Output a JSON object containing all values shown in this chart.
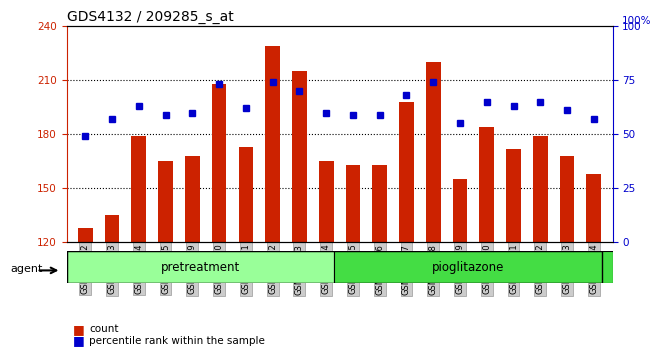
{
  "title": "GDS4132 / 209285_s_at",
  "samples": [
    "GSM201542",
    "GSM201543",
    "GSM201544",
    "GSM201545",
    "GSM201829",
    "GSM201830",
    "GSM201831",
    "GSM201832",
    "GSM201833",
    "GSM201834",
    "GSM201835",
    "GSM201836",
    "GSM201837",
    "GSM201838",
    "GSM201839",
    "GSM201840",
    "GSM201841",
    "GSM201842",
    "GSM201843",
    "GSM201844"
  ],
  "counts": [
    128,
    135,
    179,
    165,
    168,
    208,
    173,
    229,
    215,
    165,
    163,
    163,
    198,
    220,
    155,
    184,
    172,
    179,
    168,
    158
  ],
  "percentiles": [
    49,
    57,
    63,
    59,
    60,
    73,
    62,
    74,
    70,
    60,
    59,
    59,
    68,
    74,
    55,
    65,
    63,
    65,
    61,
    57
  ],
  "pretreatment_count": 10,
  "pioglitazone_count": 10,
  "ylim_left": [
    120,
    240
  ],
  "ylim_right": [
    0,
    100
  ],
  "yticks_left": [
    120,
    150,
    180,
    210,
    240
  ],
  "yticks_right": [
    0,
    25,
    50,
    75,
    100
  ],
  "bar_color": "#cc2200",
  "dot_color": "#0000cc",
  "pretreatment_color": "#99ff99",
  "pioglitazone_color": "#44dd44",
  "agent_label": "agent",
  "pretreatment_label": "pretreatment",
  "pioglitazone_label": "pioglitazone",
  "legend_count": "count",
  "legend_percentile": "percentile rank within the sample",
  "title_fontsize": 10,
  "tick_fontsize": 7.5
}
